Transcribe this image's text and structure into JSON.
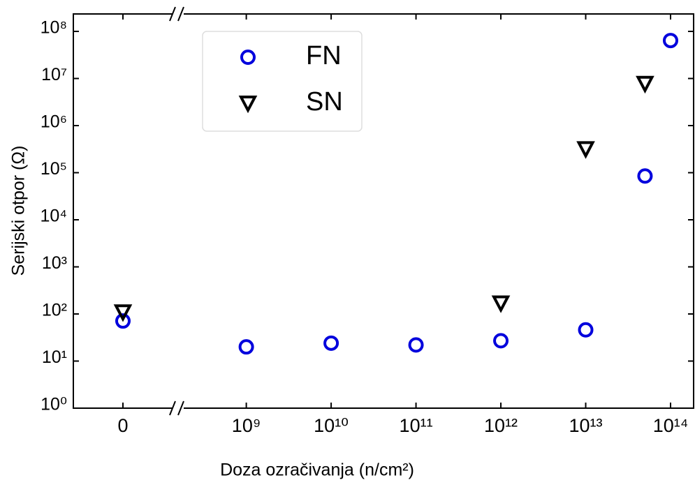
{
  "chart_data": {
    "type": "scatter",
    "xlabel": "Doza ozračivanja (n/cm²)",
    "ylabel": "Serijski otpor (Ω)",
    "xscale": "log",
    "yscale": "log",
    "xbreak": true,
    "xlim": [
      190000000,
      100000000000000
    ],
    "xticks": [
      0,
      {
        "value": 1000000000,
        "label": "10⁹"
      },
      {
        "value": 10000000000,
        "label": "10¹⁰"
      },
      {
        "value": 100000000000,
        "label": "10¹¹"
      },
      {
        "value": 1000000000000,
        "label": "10¹²"
      },
      {
        "value": 10000000000000,
        "label": "10¹³"
      },
      {
        "value": 100000000000000,
        "label": "10¹⁴"
      }
    ],
    "ylim": [
      1,
      100000000
    ],
    "yticks": [
      {
        "value": 1,
        "label": "10⁰"
      },
      {
        "value": 10,
        "label": "10¹"
      },
      {
        "value": 100,
        "label": "10²"
      },
      {
        "value": 1000,
        "label": "10³"
      },
      {
        "value": 10000,
        "label": "10⁴"
      },
      {
        "value": 100000,
        "label": "10⁵"
      },
      {
        "value": 1000000,
        "label": "10⁶"
      },
      {
        "value": 10000000,
        "label": "10⁷"
      },
      {
        "value": 100000000,
        "label": "10⁸"
      }
    ],
    "legend": "upper left",
    "series": [
      {
        "name": "FN",
        "color": "#0000dd",
        "marker": "circle",
        "x": [
          0,
          1000000000,
          10000000000,
          100000000000,
          1000000000000,
          10000000000000,
          50000000000000,
          100000000000000
        ],
        "values": [
          71,
          20,
          24,
          22,
          27,
          46,
          85000,
          64000000
        ]
      },
      {
        "name": "SN",
        "color": "#000000",
        "marker": "triangle-down",
        "x": [
          0,
          1000000000000,
          10000000000000,
          50000000000000
        ],
        "values": [
          110,
          170,
          320000,
          7800000
        ]
      }
    ]
  }
}
